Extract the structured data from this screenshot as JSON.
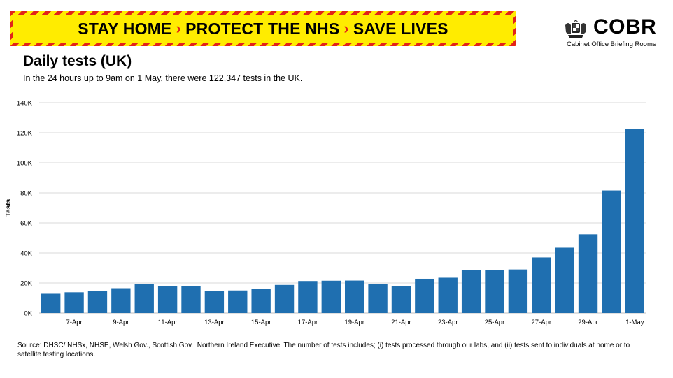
{
  "banner": {
    "part1": "STAY HOME",
    "part2": "PROTECT THE NHS",
    "part3": "SAVE LIVES",
    "separator": "›"
  },
  "logo": {
    "name": "COBR",
    "subtitle": "Cabinet Office Briefing Rooms",
    "icon": "royal-crest-icon"
  },
  "header": {
    "title": "Daily tests (UK)",
    "subtitle": "In the 24 hours up to 9am on 1 May, there were 122,347  tests in the UK."
  },
  "footnote": {
    "text": "Source: DHSC/ NHSx,  NHSE,  Welsh Gov., Scottish Gov., Northern Ireland Executive. The number  of tests includes; (i) tests processed through our labs, and (ii) tests sent to individuals at home or to satellite testing locations."
  },
  "chart_data": {
    "type": "bar",
    "title": "Daily tests (UK)",
    "ylabel": "Tests",
    "xlabel": "",
    "ylim": [
      0,
      140000
    ],
    "yticks": [
      0,
      20000,
      40000,
      60000,
      80000,
      100000,
      120000,
      140000
    ],
    "ytick_labels": [
      "0K",
      "20K",
      "40K",
      "60K",
      "80K",
      "100K",
      "120K",
      "140K"
    ],
    "grid": true,
    "bar_color": "#1f6fb0",
    "categories": [
      "6-Apr",
      "7-Apr",
      "8-Apr",
      "9-Apr",
      "10-Apr",
      "11-Apr",
      "12-Apr",
      "13-Apr",
      "14-Apr",
      "15-Apr",
      "16-Apr",
      "17-Apr",
      "18-Apr",
      "19-Apr",
      "20-Apr",
      "21-Apr",
      "22-Apr",
      "23-Apr",
      "24-Apr",
      "25-Apr",
      "26-Apr",
      "27-Apr",
      "28-Apr",
      "29-Apr",
      "30-Apr",
      "1-May"
    ],
    "tick_labels": [
      "7-Apr",
      "9-Apr",
      "11-Apr",
      "13-Apr",
      "15-Apr",
      "17-Apr",
      "19-Apr",
      "21-Apr",
      "23-Apr",
      "25-Apr",
      "27-Apr",
      "29-Apr",
      "1-May"
    ],
    "values": [
      12800,
      13800,
      14500,
      16500,
      19100,
      18100,
      18000,
      14500,
      15000,
      16000,
      18700,
      21300,
      21500,
      21600,
      19300,
      18000,
      22800,
      23500,
      28500,
      28700,
      29000,
      37000,
      43500,
      52400,
      81600,
      122347
    ]
  }
}
